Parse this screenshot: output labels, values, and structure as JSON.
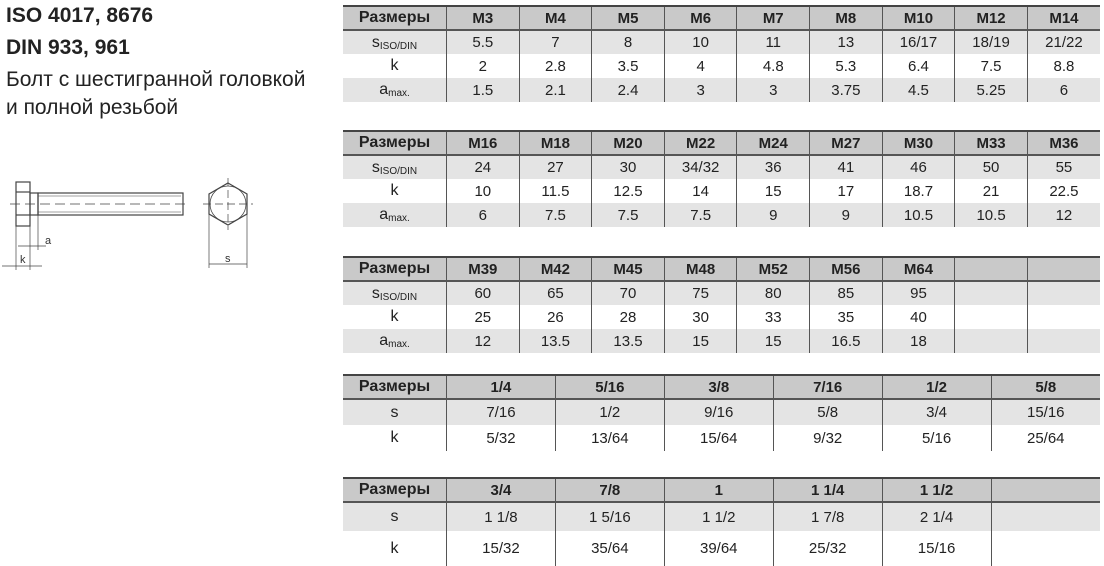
{
  "heading": {
    "line1": "ISO 4017, 8676",
    "line2": "DIN 933, 961",
    "line3": "Болт с шестигранной головкой",
    "line4": "и полной резьбой"
  },
  "drawing": {
    "label_a": "a",
    "label_k": "k",
    "label_s": "s"
  },
  "tables": [
    {
      "header": [
        "Размеры",
        "M3",
        "M4",
        "M5",
        "M6",
        "M7",
        "M8",
        "M10",
        "M12",
        "M14"
      ],
      "rows": [
        {
          "label": "s",
          "sub": "ISO/DIN",
          "values": [
            "5.5",
            "7",
            "8",
            "10",
            "11",
            "13",
            "16/17",
            "18/19",
            "21/22"
          ]
        },
        {
          "label": "k",
          "sub": "",
          "values": [
            "2",
            "2.8",
            "3.5",
            "4",
            "4.8",
            "5.3",
            "6.4",
            "7.5",
            "8.8"
          ]
        },
        {
          "label": "a",
          "sub": "max.",
          "values": [
            "1.5",
            "2.1",
            "2.4",
            "3",
            "3",
            "3.75",
            "4.5",
            "5.25",
            "6"
          ]
        }
      ]
    },
    {
      "header": [
        "Размеры",
        "M16",
        "M18",
        "M20",
        "M22",
        "M24",
        "M27",
        "M30",
        "M33",
        "M36"
      ],
      "rows": [
        {
          "label": "s",
          "sub": "ISO/DIN",
          "values": [
            "24",
            "27",
            "30",
            "34/32",
            "36",
            "41",
            "46",
            "50",
            "55"
          ]
        },
        {
          "label": "k",
          "sub": "",
          "values": [
            "10",
            "11.5",
            "12.5",
            "14",
            "15",
            "17",
            "18.7",
            "21",
            "22.5"
          ]
        },
        {
          "label": "a",
          "sub": "max.",
          "values": [
            "6",
            "7.5",
            "7.5",
            "7.5",
            "9",
            "9",
            "10.5",
            "10.5",
            "12"
          ]
        }
      ]
    },
    {
      "header": [
        "Размеры",
        "M39",
        "M42",
        "M45",
        "M48",
        "M52",
        "M56",
        "M64",
        "",
        ""
      ],
      "rows": [
        {
          "label": "s",
          "sub": "ISO/DIN",
          "values": [
            "60",
            "65",
            "70",
            "75",
            "80",
            "85",
            "95",
            "",
            ""
          ]
        },
        {
          "label": "k",
          "sub": "",
          "values": [
            "25",
            "26",
            "28",
            "30",
            "33",
            "35",
            "40",
            "",
            ""
          ]
        },
        {
          "label": "a",
          "sub": "max.",
          "values": [
            "12",
            "13.5",
            "13.5",
            "15",
            "15",
            "16.5",
            "18",
            "",
            ""
          ]
        }
      ]
    },
    {
      "header": [
        "Размеры",
        "1/4",
        "5/16",
        "3/8",
        "7/16",
        "1/2",
        "5/8"
      ],
      "rows": [
        {
          "label": "s",
          "sub": "",
          "values": [
            "7/16",
            "1/2",
            "9/16",
            "5/8",
            "3/4",
            "15/16"
          ]
        },
        {
          "label": "k",
          "sub": "",
          "values": [
            "5/32",
            "13/64",
            "15/64",
            "9/32",
            "5/16",
            "25/64"
          ]
        }
      ]
    },
    {
      "header": [
        "Размеры",
        "3/4",
        "7/8",
        "1",
        "1 1/4",
        "1 1/2",
        ""
      ],
      "rows": [
        {
          "label": "s",
          "sub": "",
          "values": [
            "1 1/8",
            "1 5/16",
            "1 1/2",
            "1 7/8",
            "2 1/4",
            ""
          ]
        },
        {
          "label": "k",
          "sub": "",
          "values": [
            "15/32",
            "35/64",
            "39/64",
            "25/32",
            "15/16",
            ""
          ]
        }
      ]
    }
  ]
}
